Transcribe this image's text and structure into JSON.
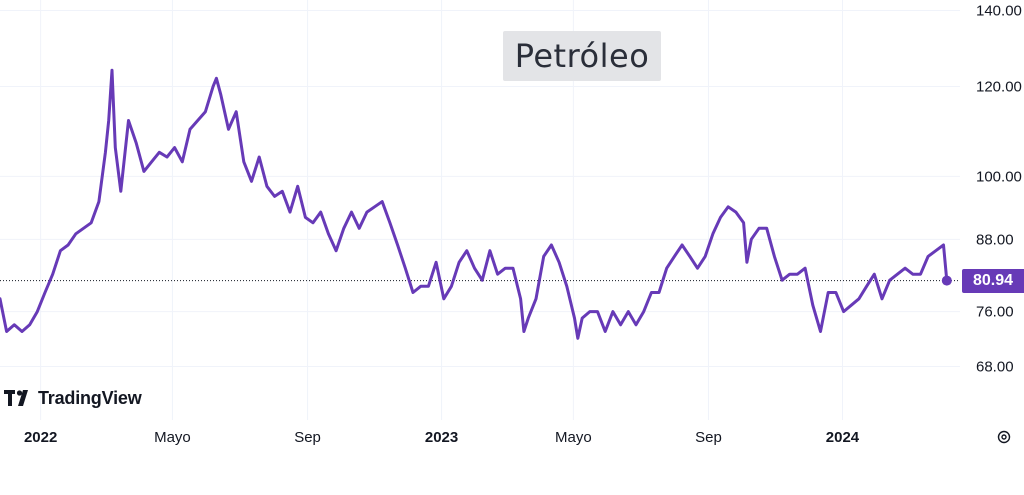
{
  "chart_data": {
    "type": "line",
    "title": "Petróleo",
    "x_tick_labels": [
      {
        "label": "2022",
        "date": "2022-01-01",
        "bold": true
      },
      {
        "label": "Mayo",
        "date": "2022-05-01",
        "bold": false
      },
      {
        "label": "Sep",
        "date": "2022-09-01",
        "bold": false
      },
      {
        "label": "2023",
        "date": "2023-01-01",
        "bold": true
      },
      {
        "label": "Mayo",
        "date": "2023-05-01",
        "bold": false
      },
      {
        "label": "Sep",
        "date": "2023-09-01",
        "bold": false
      },
      {
        "label": "2024",
        "date": "2024-01-01",
        "bold": true
      }
    ],
    "y_tick_labels": [
      "140.00",
      "120.00",
      "100.00",
      "88.00",
      "76.00",
      "68.00"
    ],
    "y_ticks": [
      140,
      120,
      100,
      88,
      76,
      68
    ],
    "ylim": [
      61,
      143
    ],
    "xlim": [
      "2021-11-25",
      "2024-04-17"
    ],
    "last_value": 80.94,
    "last_value_label": "80.94",
    "line_color": "#673ab7",
    "grid": true,
    "series": [
      {
        "points": [
          [
            "2021-11-25",
            78
          ],
          [
            "2021-12-01",
            73
          ],
          [
            "2021-12-08",
            74
          ],
          [
            "2021-12-15",
            73
          ],
          [
            "2021-12-22",
            74
          ],
          [
            "2021-12-29",
            76
          ],
          [
            "2022-01-05",
            79
          ],
          [
            "2022-01-12",
            82
          ],
          [
            "2022-01-19",
            86
          ],
          [
            "2022-01-26",
            87
          ],
          [
            "2022-02-02",
            89
          ],
          [
            "2022-02-09",
            90
          ],
          [
            "2022-02-16",
            91
          ],
          [
            "2022-02-23",
            95
          ],
          [
            "2022-03-01",
            105
          ],
          [
            "2022-03-04",
            112
          ],
          [
            "2022-03-07",
            124
          ],
          [
            "2022-03-10",
            106
          ],
          [
            "2022-03-15",
            97
          ],
          [
            "2022-03-22",
            112
          ],
          [
            "2022-03-29",
            107
          ],
          [
            "2022-04-05",
            101
          ],
          [
            "2022-04-12",
            103
          ],
          [
            "2022-04-19",
            105
          ],
          [
            "2022-04-26",
            104
          ],
          [
            "2022-05-03",
            106
          ],
          [
            "2022-05-10",
            103
          ],
          [
            "2022-05-17",
            110
          ],
          [
            "2022-05-24",
            112
          ],
          [
            "2022-05-31",
            114
          ],
          [
            "2022-06-07",
            120
          ],
          [
            "2022-06-10",
            122
          ],
          [
            "2022-06-14",
            118
          ],
          [
            "2022-06-21",
            110
          ],
          [
            "2022-06-28",
            114
          ],
          [
            "2022-07-05",
            103
          ],
          [
            "2022-07-12",
            99
          ],
          [
            "2022-07-19",
            104
          ],
          [
            "2022-07-26",
            98
          ],
          [
            "2022-08-02",
            96
          ],
          [
            "2022-08-09",
            97
          ],
          [
            "2022-08-16",
            93
          ],
          [
            "2022-08-23",
            98
          ],
          [
            "2022-08-30",
            92
          ],
          [
            "2022-09-06",
            91
          ],
          [
            "2022-09-13",
            93
          ],
          [
            "2022-09-20",
            89
          ],
          [
            "2022-09-27",
            86
          ],
          [
            "2022-10-04",
            90
          ],
          [
            "2022-10-11",
            93
          ],
          [
            "2022-10-18",
            90
          ],
          [
            "2022-10-25",
            93
          ],
          [
            "2022-11-01",
            94
          ],
          [
            "2022-11-08",
            95
          ],
          [
            "2022-11-15",
            91
          ],
          [
            "2022-11-22",
            87
          ],
          [
            "2022-11-29",
            83
          ],
          [
            "2022-12-06",
            79
          ],
          [
            "2022-12-13",
            80
          ],
          [
            "2022-12-20",
            80
          ],
          [
            "2022-12-27",
            84
          ],
          [
            "2023-01-03",
            78
          ],
          [
            "2023-01-10",
            80
          ],
          [
            "2023-01-17",
            84
          ],
          [
            "2023-01-24",
            86
          ],
          [
            "2023-01-31",
            83
          ],
          [
            "2023-02-07",
            81
          ],
          [
            "2023-02-14",
            86
          ],
          [
            "2023-02-21",
            82
          ],
          [
            "2023-02-28",
            83
          ],
          [
            "2023-03-07",
            83
          ],
          [
            "2023-03-14",
            78
          ],
          [
            "2023-03-17",
            73
          ],
          [
            "2023-03-21",
            75
          ],
          [
            "2023-03-28",
            78
          ],
          [
            "2023-04-04",
            85
          ],
          [
            "2023-04-11",
            87
          ],
          [
            "2023-04-18",
            84
          ],
          [
            "2023-04-25",
            80
          ],
          [
            "2023-05-02",
            75
          ],
          [
            "2023-05-05",
            72
          ],
          [
            "2023-05-09",
            75
          ],
          [
            "2023-05-16",
            76
          ],
          [
            "2023-05-23",
            76
          ],
          [
            "2023-05-30",
            73
          ],
          [
            "2023-06-06",
            76
          ],
          [
            "2023-06-13",
            74
          ],
          [
            "2023-06-20",
            76
          ],
          [
            "2023-06-27",
            74
          ],
          [
            "2023-07-04",
            76
          ],
          [
            "2023-07-11",
            79
          ],
          [
            "2023-07-18",
            79
          ],
          [
            "2023-07-25",
            83
          ],
          [
            "2023-08-01",
            85
          ],
          [
            "2023-08-08",
            87
          ],
          [
            "2023-08-15",
            85
          ],
          [
            "2023-08-22",
            83
          ],
          [
            "2023-08-29",
            85
          ],
          [
            "2023-09-05",
            89
          ],
          [
            "2023-09-12",
            92
          ],
          [
            "2023-09-19",
            94
          ],
          [
            "2023-09-26",
            93
          ],
          [
            "2023-10-03",
            91
          ],
          [
            "2023-10-06",
            84
          ],
          [
            "2023-10-10",
            88
          ],
          [
            "2023-10-17",
            90
          ],
          [
            "2023-10-24",
            90
          ],
          [
            "2023-10-31",
            85
          ],
          [
            "2023-11-07",
            81
          ],
          [
            "2023-11-14",
            82
          ],
          [
            "2023-11-21",
            82
          ],
          [
            "2023-11-28",
            83
          ],
          [
            "2023-12-05",
            77
          ],
          [
            "2023-12-12",
            73
          ],
          [
            "2023-12-19",
            79
          ],
          [
            "2023-12-26",
            79
          ],
          [
            "2024-01-02",
            76
          ],
          [
            "2024-01-09",
            77
          ],
          [
            "2024-01-16",
            78
          ],
          [
            "2024-01-23",
            80
          ],
          [
            "2024-01-30",
            82
          ],
          [
            "2024-02-06",
            78
          ],
          [
            "2024-02-13",
            81
          ],
          [
            "2024-02-20",
            82
          ],
          [
            "2024-02-27",
            83
          ],
          [
            "2024-03-05",
            82
          ],
          [
            "2024-03-12",
            82
          ],
          [
            "2024-03-19",
            85
          ],
          [
            "2024-03-26",
            86
          ],
          [
            "2024-04-02",
            87
          ],
          [
            "2024-04-05",
            80.94
          ]
        ]
      }
    ]
  },
  "branding": {
    "logo_icon": "tradingview-logo-icon",
    "logo_text": "TradingView"
  },
  "controls": {
    "settings_icon": "settings-icon"
  }
}
